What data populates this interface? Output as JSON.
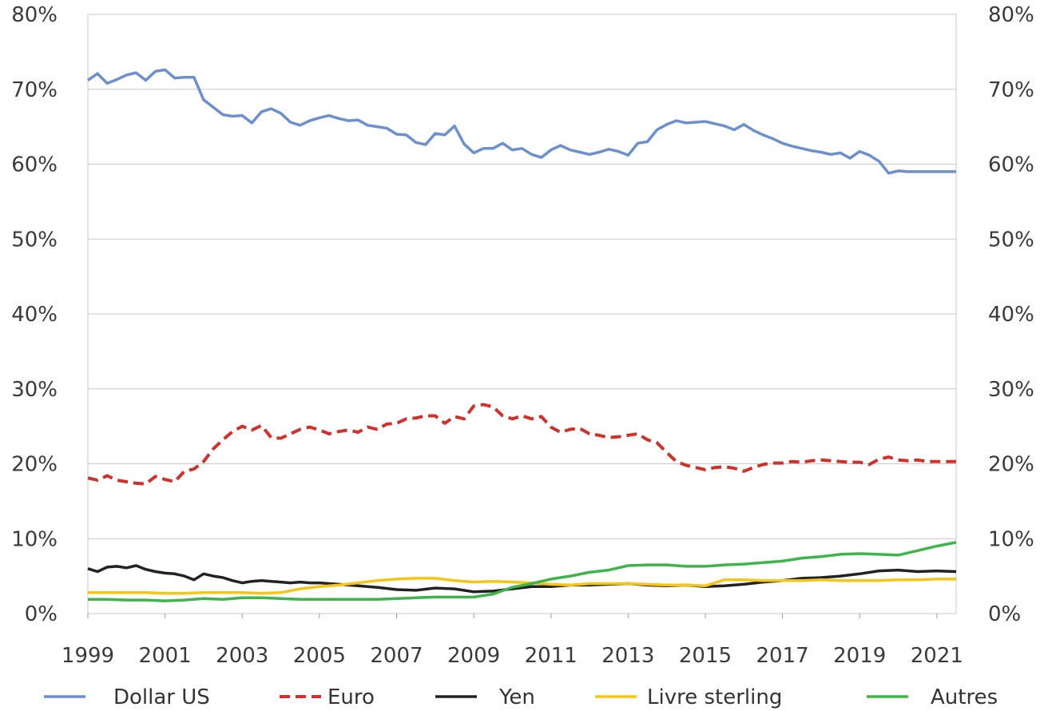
{
  "chart_data": {
    "type": "line",
    "title": "",
    "xlabel": "",
    "ylabel": "",
    "xlim": [
      1999,
      2021.5
    ],
    "ylim": [
      0,
      80
    ],
    "y_ticks": [
      "0%",
      "10%",
      "20%",
      "30%",
      "40%",
      "50%",
      "60%",
      "70%",
      "80%"
    ],
    "y_tick_values": [
      0,
      10,
      20,
      30,
      40,
      50,
      60,
      70,
      80
    ],
    "x_ticks": [
      "1999",
      "2001",
      "2003",
      "2005",
      "2007",
      "2009",
      "2011",
      "2013",
      "2015",
      "2017",
      "2019",
      "2021"
    ],
    "x_tick_values": [
      1999,
      2001,
      2003,
      2005,
      2007,
      2009,
      2011,
      2013,
      2015,
      2017,
      2019,
      2021
    ],
    "grid": "horizontal",
    "legend_position": "bottom",
    "dual_y_axis": true,
    "series": [
      {
        "name": "Dollar US",
        "color": "#6b8fcf",
        "dash": "solid",
        "x": [
          1999,
          1999.25,
          1999.5,
          1999.75,
          2000,
          2000.25,
          2000.5,
          2000.75,
          2001,
          2001.25,
          2001.5,
          2001.75,
          2002,
          2002.25,
          2002.5,
          2002.75,
          2003,
          2003.25,
          2003.5,
          2003.75,
          2004,
          2004.25,
          2004.5,
          2004.75,
          2005,
          2005.25,
          2005.5,
          2005.75,
          2006,
          2006.25,
          2006.5,
          2006.75,
          2007,
          2007.25,
          2007.5,
          2007.75,
          2008,
          2008.25,
          2008.5,
          2008.75,
          2009,
          2009.25,
          2009.5,
          2009.75,
          2010,
          2010.25,
          2010.5,
          2010.75,
          2011,
          2011.25,
          2011.5,
          2011.75,
          2012,
          2012.25,
          2012.5,
          2012.75,
          2013,
          2013.25,
          2013.5,
          2013.75,
          2014,
          2014.25,
          2014.5,
          2014.75,
          2015,
          2015.25,
          2015.5,
          2015.75,
          2016,
          2016.25,
          2016.5,
          2016.75,
          2017,
          2017.25,
          2017.5,
          2017.75,
          2018,
          2018.25,
          2018.5,
          2018.75,
          2019,
          2019.25,
          2019.5,
          2019.75,
          2020,
          2020.25,
          2020.5,
          2020.75,
          2021,
          2021.25,
          2021.5
        ],
        "values": [
          71.2,
          72.1,
          70.8,
          71.3,
          71.9,
          72.2,
          71.2,
          72.4,
          72.6,
          71.5,
          71.6,
          71.6,
          68.6,
          67.6,
          66.6,
          66.4,
          66.5,
          65.5,
          67.0,
          67.4,
          66.8,
          65.6,
          65.2,
          65.8,
          66.2,
          66.5,
          66.1,
          65.8,
          65.9,
          65.2,
          65.0,
          64.8,
          64.0,
          63.9,
          62.9,
          62.6,
          64.1,
          63.9,
          65.1,
          62.7,
          61.5,
          62.1,
          62.1,
          62.8,
          61.9,
          62.1,
          61.3,
          60.9,
          61.9,
          62.5,
          61.9,
          61.6,
          61.3,
          61.6,
          62.0,
          61.7,
          61.2,
          62.8,
          63.0,
          64.6,
          65.3,
          65.8,
          65.5,
          65.6,
          65.7,
          65.4,
          65.1,
          64.6,
          65.3,
          64.5,
          63.9,
          63.4,
          62.8,
          62.4,
          62.1,
          61.8,
          61.6,
          61.3,
          61.5,
          60.8,
          61.7,
          61.2,
          60.4,
          58.8,
          59.1,
          59.0,
          59.0,
          59.0,
          59.0,
          59.0,
          59.0
        ]
      },
      {
        "name": "Euro",
        "color": "#d0312d",
        "dash": "dashed",
        "x": [
          1999,
          1999.25,
          1999.5,
          1999.75,
          2000,
          2000.25,
          2000.5,
          2000.75,
          2001,
          2001.25,
          2001.5,
          2001.75,
          2002,
          2002.25,
          2002.5,
          2002.75,
          2003,
          2003.25,
          2003.5,
          2003.75,
          2004,
          2004.25,
          2004.5,
          2004.75,
          2005,
          2005.25,
          2005.5,
          2005.75,
          2006,
          2006.25,
          2006.5,
          2006.75,
          2007,
          2007.25,
          2007.5,
          2007.75,
          2008,
          2008.25,
          2008.5,
          2008.75,
          2009,
          2009.25,
          2009.5,
          2009.75,
          2010,
          2010.25,
          2010.5,
          2010.75,
          2011,
          2011.25,
          2011.5,
          2011.75,
          2012,
          2012.25,
          2012.5,
          2012.75,
          2013,
          2013.25,
          2013.5,
          2013.75,
          2014,
          2014.25,
          2014.5,
          2014.75,
          2015,
          2015.25,
          2015.5,
          2015.75,
          2016,
          2016.25,
          2016.5,
          2016.75,
          2017,
          2017.25,
          2017.5,
          2017.75,
          2018,
          2018.25,
          2018.5,
          2018.75,
          2019,
          2019.25,
          2019.5,
          2019.75,
          2020,
          2020.25,
          2020.5,
          2020.75,
          2021,
          2021.25,
          2021.5
        ],
        "values": [
          18.1,
          17.8,
          18.4,
          17.8,
          17.6,
          17.4,
          17.3,
          18.3,
          17.9,
          17.6,
          19.0,
          19.3,
          20.3,
          22.0,
          23.2,
          24.3,
          25.0,
          24.5,
          25.1,
          23.5,
          23.4,
          24.0,
          24.6,
          24.9,
          24.5,
          24.0,
          24.3,
          24.5,
          24.2,
          24.9,
          24.6,
          25.3,
          25.4,
          26.0,
          26.1,
          26.4,
          26.4,
          25.4,
          26.3,
          26.0,
          27.7,
          27.9,
          27.6,
          26.4,
          26.0,
          26.4,
          26.0,
          26.3,
          24.9,
          24.2,
          24.6,
          24.7,
          24.0,
          23.8,
          23.5,
          23.6,
          23.8,
          24.0,
          23.2,
          22.8,
          21.5,
          20.3,
          19.8,
          19.5,
          19.2,
          19.5,
          19.6,
          19.4,
          19.0,
          19.5,
          19.9,
          20.1,
          20.1,
          20.3,
          20.2,
          20.4,
          20.5,
          20.4,
          20.3,
          20.2,
          20.2,
          19.9,
          20.6,
          20.9,
          20.5,
          20.4,
          20.5,
          20.3,
          20.3,
          20.3,
          20.3
        ]
      },
      {
        "name": "Yen",
        "color": "#222222",
        "dash": "solid",
        "x": [
          1999,
          1999.25,
          1999.5,
          1999.75,
          2000,
          2000.25,
          2000.5,
          2000.75,
          2001,
          2001.25,
          2001.5,
          2001.75,
          2002,
          2002.25,
          2002.5,
          2002.75,
          2003,
          2003.25,
          2003.5,
          2003.75,
          2004,
          2004.25,
          2004.5,
          2004.75,
          2005,
          2005.5,
          2006,
          2006.5,
          2007,
          2007.5,
          2008,
          2008.5,
          2009,
          2009.5,
          2010,
          2010.5,
          2011,
          2011.5,
          2012,
          2012.5,
          2013,
          2013.5,
          2014,
          2014.5,
          2015,
          2015.5,
          2016,
          2016.5,
          2017,
          2017.5,
          2018,
          2018.5,
          2019,
          2019.5,
          2020,
          2020.5,
          2021,
          2021.5
        ],
        "values": [
          6.0,
          5.6,
          6.2,
          6.3,
          6.1,
          6.4,
          5.9,
          5.6,
          5.4,
          5.3,
          5.0,
          4.5,
          5.3,
          5.0,
          4.8,
          4.4,
          4.1,
          4.3,
          4.4,
          4.3,
          4.2,
          4.1,
          4.2,
          4.1,
          4.1,
          3.9,
          3.7,
          3.5,
          3.2,
          3.1,
          3.4,
          3.3,
          2.9,
          3.0,
          3.3,
          3.6,
          3.6,
          3.8,
          3.8,
          3.9,
          4.0,
          3.8,
          3.7,
          3.8,
          3.6,
          3.7,
          3.9,
          4.2,
          4.4,
          4.7,
          4.8,
          5.0,
          5.3,
          5.7,
          5.8,
          5.6,
          5.7,
          5.6
        ]
      },
      {
        "name": "Livre sterling",
        "color": "#f5c518",
        "dash": "solid",
        "x": [
          1999,
          1999.5,
          2000,
          2000.5,
          2001,
          2001.5,
          2002,
          2002.5,
          2003,
          2003.5,
          2004,
          2004.5,
          2005,
          2005.5,
          2006,
          2006.5,
          2007,
          2007.5,
          2008,
          2008.5,
          2009,
          2009.5,
          2010,
          2010.5,
          2011,
          2011.5,
          2012,
          2012.5,
          2013,
          2013.5,
          2014,
          2014.5,
          2015,
          2015.5,
          2016,
          2016.5,
          2017,
          2017.5,
          2018,
          2018.5,
          2019,
          2019.5,
          2020,
          2020.5,
          2021,
          2021.5
        ],
        "values": [
          2.8,
          2.8,
          2.8,
          2.8,
          2.7,
          2.7,
          2.8,
          2.8,
          2.8,
          2.7,
          2.8,
          3.3,
          3.6,
          3.8,
          4.1,
          4.4,
          4.6,
          4.7,
          4.7,
          4.4,
          4.2,
          4.3,
          4.2,
          4.1,
          3.9,
          3.8,
          4.0,
          4.0,
          4.0,
          3.9,
          3.8,
          3.8,
          3.7,
          4.5,
          4.5,
          4.4,
          4.4,
          4.4,
          4.5,
          4.4,
          4.4,
          4.4,
          4.5,
          4.5,
          4.6,
          4.6
        ]
      },
      {
        "name": "Autres",
        "color": "#3db54a",
        "dash": "solid",
        "x": [
          1999,
          1999.5,
          2000,
          2000.5,
          2001,
          2001.5,
          2002,
          2002.5,
          2003,
          2003.5,
          2004,
          2004.5,
          2005,
          2005.5,
          2006,
          2006.5,
          2007,
          2007.5,
          2008,
          2008.5,
          2009,
          2009.5,
          2010,
          2010.5,
          2011,
          2011.5,
          2012,
          2012.5,
          2013,
          2013.5,
          2014,
          2014.5,
          2015,
          2015.5,
          2016,
          2016.5,
          2017,
          2017.5,
          2018,
          2018.5,
          2019,
          2019.5,
          2020,
          2020.5,
          2021,
          2021.5
        ],
        "values": [
          1.9,
          1.9,
          1.8,
          1.8,
          1.7,
          1.8,
          2.0,
          1.9,
          2.1,
          2.1,
          2.0,
          1.9,
          1.9,
          1.9,
          1.9,
          1.9,
          2.0,
          2.1,
          2.2,
          2.2,
          2.2,
          2.6,
          3.5,
          4.0,
          4.6,
          5.0,
          5.5,
          5.8,
          6.4,
          6.5,
          6.5,
          6.3,
          6.3,
          6.5,
          6.6,
          6.8,
          7.0,
          7.4,
          7.6,
          7.9,
          8.0,
          7.9,
          7.8,
          8.4,
          9.0,
          9.5
        ]
      }
    ]
  }
}
